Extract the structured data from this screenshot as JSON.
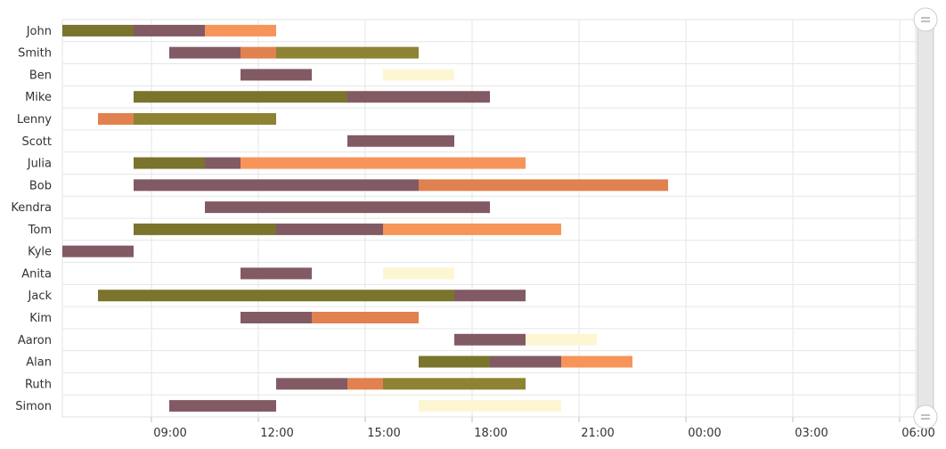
{
  "chart_data": {
    "type": "bar",
    "subtype": "gantt-timeline",
    "x_axis": {
      "start": "06:30",
      "end": "06:30 (+1d)",
      "tick_labels": [
        "09:00",
        "12:00",
        "15:00",
        "18:00",
        "21:00",
        "00:00",
        "03:00",
        "06:00"
      ]
    },
    "grid": true,
    "categories": [
      "John",
      "Smith",
      "Ben",
      "Mike",
      "Lenny",
      "Scott",
      "Julia",
      "Bob",
      "Kendra",
      "Tom",
      "Kyle",
      "Anita",
      "Jack",
      "Kim",
      "Aaron",
      "Alan",
      "Ruth",
      "Simon"
    ],
    "colors": {
      "olive": "#7a742c",
      "olive_light": "#8d8333",
      "mauve": "#825a64",
      "orange": "#f7945a",
      "orange_dark": "#e1814f",
      "cream": "#fdf6d3"
    },
    "rows": [
      {
        "name": "John",
        "segments": [
          {
            "start": "06:30",
            "end": "08:30",
            "color": "olive"
          },
          {
            "start": "08:30",
            "end": "10:30",
            "color": "mauve"
          },
          {
            "start": "10:30",
            "end": "12:30",
            "color": "orange"
          }
        ]
      },
      {
        "name": "Smith",
        "segments": [
          {
            "start": "09:30",
            "end": "11:30",
            "color": "mauve"
          },
          {
            "start": "11:30",
            "end": "12:30",
            "color": "orange_dark"
          },
          {
            "start": "12:30",
            "end": "16:30",
            "color": "olive_light"
          }
        ]
      },
      {
        "name": "Ben",
        "segments": [
          {
            "start": "11:30",
            "end": "13:30",
            "color": "mauve"
          },
          {
            "start": "15:30",
            "end": "17:30",
            "color": "cream"
          }
        ]
      },
      {
        "name": "Mike",
        "segments": [
          {
            "start": "08:30",
            "end": "14:30",
            "color": "olive"
          },
          {
            "start": "14:30",
            "end": "18:30",
            "color": "mauve"
          }
        ]
      },
      {
        "name": "Lenny",
        "segments": [
          {
            "start": "07:30",
            "end": "08:30",
            "color": "orange_dark"
          },
          {
            "start": "08:30",
            "end": "12:30",
            "color": "olive_light"
          }
        ]
      },
      {
        "name": "Scott",
        "segments": [
          {
            "start": "14:30",
            "end": "17:30",
            "color": "mauve"
          }
        ]
      },
      {
        "name": "Julia",
        "segments": [
          {
            "start": "08:30",
            "end": "10:30",
            "color": "olive"
          },
          {
            "start": "10:30",
            "end": "11:30",
            "color": "mauve"
          },
          {
            "start": "11:30",
            "end": "19:30",
            "color": "orange"
          }
        ]
      },
      {
        "name": "Bob",
        "segments": [
          {
            "start": "08:30",
            "end": "16:30",
            "color": "mauve"
          },
          {
            "start": "16:30",
            "end": "23:30",
            "color": "orange_dark"
          }
        ]
      },
      {
        "name": "Kendra",
        "segments": [
          {
            "start": "10:30",
            "end": "18:30",
            "color": "mauve"
          }
        ]
      },
      {
        "name": "Tom",
        "segments": [
          {
            "start": "08:30",
            "end": "12:30",
            "color": "olive"
          },
          {
            "start": "12:30",
            "end": "15:30",
            "color": "mauve"
          },
          {
            "start": "15:30",
            "end": "20:30",
            "color": "orange"
          }
        ]
      },
      {
        "name": "Kyle",
        "segments": [
          {
            "start": "06:30",
            "end": "08:30",
            "color": "mauve"
          }
        ]
      },
      {
        "name": "Anita",
        "segments": [
          {
            "start": "11:30",
            "end": "13:30",
            "color": "mauve"
          },
          {
            "start": "15:30",
            "end": "17:30",
            "color": "cream"
          }
        ]
      },
      {
        "name": "Jack",
        "segments": [
          {
            "start": "07:30",
            "end": "17:30",
            "color": "olive"
          },
          {
            "start": "17:30",
            "end": "19:30",
            "color": "mauve"
          }
        ]
      },
      {
        "name": "Kim",
        "segments": [
          {
            "start": "11:30",
            "end": "13:30",
            "color": "mauve"
          },
          {
            "start": "13:30",
            "end": "16:30",
            "color": "orange_dark"
          }
        ]
      },
      {
        "name": "Aaron",
        "segments": [
          {
            "start": "17:30",
            "end": "19:30",
            "color": "mauve"
          },
          {
            "start": "19:30",
            "end": "21:30",
            "color": "cream"
          }
        ]
      },
      {
        "name": "Alan",
        "segments": [
          {
            "start": "16:30",
            "end": "18:30",
            "color": "olive"
          },
          {
            "start": "18:30",
            "end": "20:30",
            "color": "mauve"
          },
          {
            "start": "20:30",
            "end": "22:30",
            "color": "orange"
          }
        ]
      },
      {
        "name": "Ruth",
        "segments": [
          {
            "start": "12:30",
            "end": "14:30",
            "color": "mauve"
          },
          {
            "start": "14:30",
            "end": "15:30",
            "color": "orange_dark"
          },
          {
            "start": "15:30",
            "end": "19:30",
            "color": "olive_light"
          }
        ]
      },
      {
        "name": "Simon",
        "segments": [
          {
            "start": "09:30",
            "end": "12:30",
            "color": "mauve"
          },
          {
            "start": "16:30",
            "end": "20:30",
            "color": "cream"
          }
        ]
      }
    ]
  },
  "scrollbar": {
    "top_handle_icon": "drag-handle-icon",
    "bottom_handle_icon": "drag-handle-icon"
  }
}
